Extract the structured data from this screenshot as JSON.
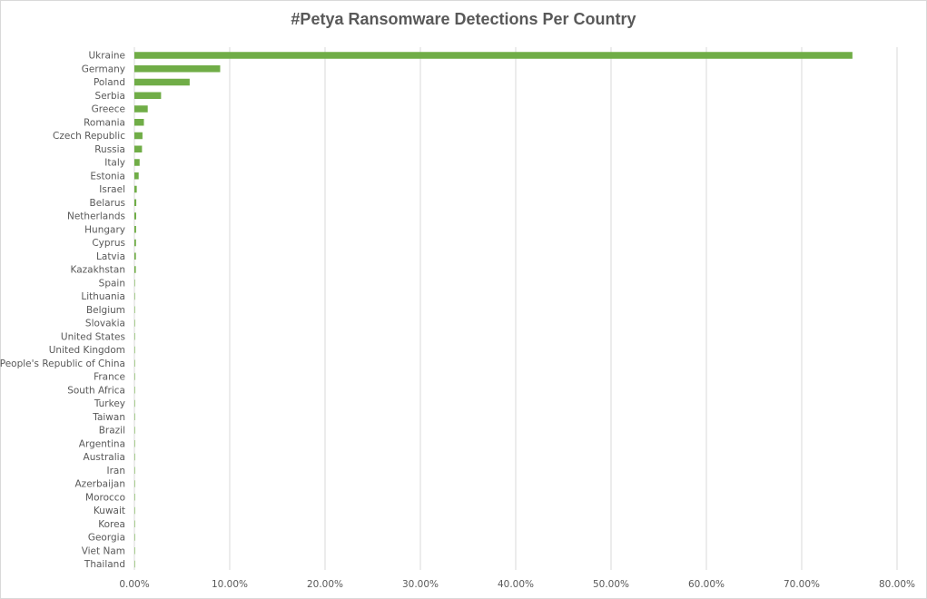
{
  "chart_data": {
    "type": "bar",
    "orientation": "horizontal",
    "title": "#Petya Ransomware Detections Per Country",
    "categories": [
      "Ukraine",
      "Germany",
      "Poland",
      "Serbia",
      "Greece",
      "Romania",
      "Czech Republic",
      "Russia",
      "Italy",
      "Estonia",
      "Israel",
      "Belarus",
      "Netherlands",
      "Hungary",
      "Cyprus",
      "Latvia",
      "Kazakhstan",
      "Spain",
      "Lithuania",
      "Belgium",
      "Slovakia",
      "United States",
      "United Kingdom",
      "People's Republic of China",
      "France",
      "South Africa",
      "Turkey",
      "Taiwan",
      "Brazil",
      "Argentina",
      "Australia",
      "Iran",
      "Azerbaijan",
      "Morocco",
      "Kuwait",
      "Korea",
      "Georgia",
      "Viet Nam",
      "Thailand"
    ],
    "values": [
      0.7532,
      0.09,
      0.058,
      0.028,
      0.014,
      0.01,
      0.0085,
      0.008,
      0.0055,
      0.0045,
      0.0025,
      0.002,
      0.0019,
      0.0018,
      0.0017,
      0.0016,
      0.0015,
      0.0005,
      0.0005,
      0.0005,
      0.0004,
      0.0004,
      0.0004,
      0.0003,
      0.0003,
      0.0003,
      0.0003,
      0.0003,
      0.0003,
      0.0002,
      0.0002,
      0.0002,
      0.0002,
      0.0002,
      0.0002,
      0.0001,
      0.0001,
      0.0001,
      0.0001
    ],
    "xlim": [
      0,
      0.8
    ],
    "x_ticks": [
      "0.00%",
      "10.00%",
      "20.00%",
      "30.00%",
      "40.00%",
      "50.00%",
      "60.00%",
      "70.00%",
      "80.00%"
    ],
    "xlabel": "",
    "ylabel": "",
    "grid": "vertical",
    "legend": "none",
    "bar_color": "#70ad47"
  }
}
